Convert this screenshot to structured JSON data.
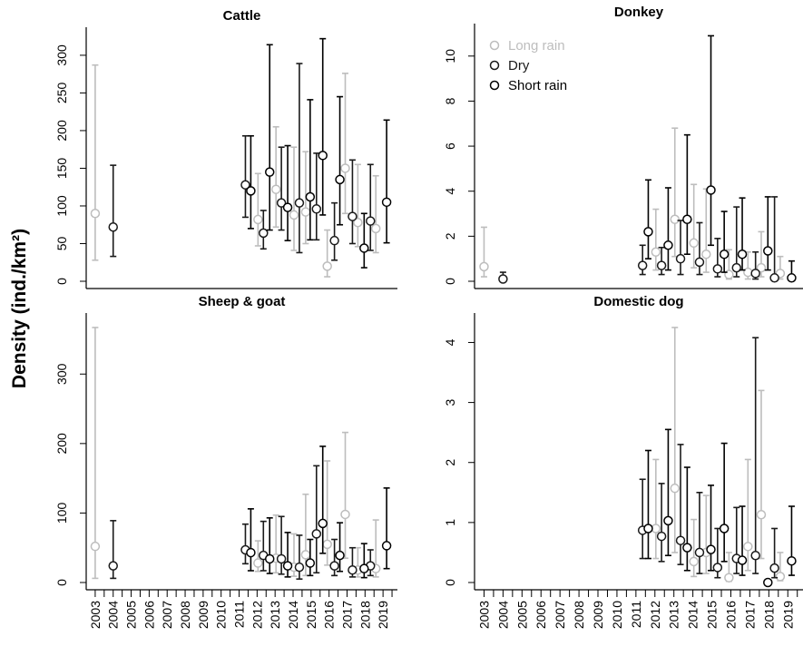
{
  "figure": {
    "ylabel": "Density (ind./km²)",
    "colors": {
      "long_rain": "#bdbdbd",
      "dry": "#1a1a1a",
      "short_rain": "#000000",
      "axis": "#000000"
    }
  },
  "chart_data": [
    {
      "type": "scatter",
      "title": "Cattle",
      "ylim": [
        0,
        330
      ],
      "yticks": [
        0,
        50,
        100,
        150,
        200,
        250,
        300
      ],
      "series": [
        {
          "name": "Long rain",
          "points": [
            {
              "x": 2003.0,
              "y": 90,
              "lo": 28,
              "hi": 287
            },
            {
              "x": 2012.05,
              "y": 82,
              "lo": 47,
              "hi": 143
            },
            {
              "x": 2013.05,
              "y": 122,
              "lo": 72,
              "hi": 205
            },
            {
              "x": 2014.05,
              "y": 88,
              "lo": 41,
              "hi": 178
            },
            {
              "x": 2014.7,
              "y": 92,
              "lo": 50,
              "hi": 172
            },
            {
              "x": 2015.9,
              "y": 20,
              "lo": 6,
              "hi": 68
            },
            {
              "x": 2016.9,
              "y": 150,
              "lo": 90,
              "hi": 276
            },
            {
              "x": 2017.6,
              "y": 78,
              "lo": 46,
              "hi": 155
            },
            {
              "x": 2018.6,
              "y": 70,
              "lo": 38,
              "hi": 140
            }
          ]
        },
        {
          "name": "Dry",
          "points": [
            {
              "x": 2004.0,
              "y": 72,
              "lo": 33,
              "hi": 154
            },
            {
              "x": 2011.35,
              "y": 128,
              "lo": 85,
              "hi": 193
            },
            {
              "x": 2012.35,
              "y": 64,
              "lo": 43,
              "hi": 94
            },
            {
              "x": 2013.35,
              "y": 104,
              "lo": 68,
              "hi": 178
            },
            {
              "x": 2014.35,
              "y": 104,
              "lo": 38,
              "hi": 289
            },
            {
              "x": 2015.3,
              "y": 96,
              "lo": 55,
              "hi": 170
            },
            {
              "x": 2016.3,
              "y": 54,
              "lo": 28,
              "hi": 104
            },
            {
              "x": 2017.3,
              "y": 86,
              "lo": 50,
              "hi": 161
            },
            {
              "x": 2018.3,
              "y": 80,
              "lo": 41,
              "hi": 155
            }
          ]
        },
        {
          "name": "Short rain",
          "points": [
            {
              "x": 2011.65,
              "y": 120,
              "lo": 70,
              "hi": 193
            },
            {
              "x": 2012.7,
              "y": 145,
              "lo": 68,
              "hi": 314
            },
            {
              "x": 2013.7,
              "y": 98,
              "lo": 54,
              "hi": 180
            },
            {
              "x": 2014.95,
              "y": 112,
              "lo": 55,
              "hi": 241
            },
            {
              "x": 2015.65,
              "y": 167,
              "lo": 88,
              "hi": 322
            },
            {
              "x": 2016.6,
              "y": 135,
              "lo": 75,
              "hi": 245
            },
            {
              "x": 2017.95,
              "y": 44,
              "lo": 18,
              "hi": 90
            },
            {
              "x": 2019.2,
              "y": 105,
              "lo": 51,
              "hi": 214
            }
          ]
        }
      ]
    },
    {
      "type": "scatter",
      "title": "Donkey",
      "ylim": [
        0,
        11.2
      ],
      "yticks": [
        0,
        2,
        4,
        6,
        8,
        10
      ],
      "legend": {
        "placement": "top-left",
        "entries": [
          "Long rain",
          "Dry",
          "Short rain"
        ]
      },
      "series": [
        {
          "name": "Long rain",
          "points": [
            {
              "x": 2003.0,
              "y": 0.65,
              "lo": 0.2,
              "hi": 2.4
            },
            {
              "x": 2012.05,
              "y": 1.3,
              "lo": 0.5,
              "hi": 3.2
            },
            {
              "x": 2013.05,
              "y": 2.75,
              "lo": 1.1,
              "hi": 6.8
            },
            {
              "x": 2014.05,
              "y": 1.7,
              "lo": 0.6,
              "hi": 4.3
            },
            {
              "x": 2014.7,
              "y": 1.2,
              "lo": 0.4,
              "hi": 4.1
            },
            {
              "x": 2015.9,
              "y": 0.3,
              "lo": 0.1,
              "hi": 1.4
            },
            {
              "x": 2016.9,
              "y": 0.4,
              "lo": 0.1,
              "hi": 1.3
            },
            {
              "x": 2017.6,
              "y": 0.6,
              "lo": 0.2,
              "hi": 2.2
            },
            {
              "x": 2018.6,
              "y": 0.35,
              "lo": 0.1,
              "hi": 1.1
            }
          ]
        },
        {
          "name": "Dry",
          "points": [
            {
              "x": 2004.0,
              "y": 0.1,
              "lo": 0.0,
              "hi": 0.4
            },
            {
              "x": 2011.35,
              "y": 0.7,
              "lo": 0.3,
              "hi": 1.6
            },
            {
              "x": 2012.35,
              "y": 0.7,
              "lo": 0.3,
              "hi": 1.5
            },
            {
              "x": 2013.35,
              "y": 1.0,
              "lo": 0.3,
              "hi": 2.7
            },
            {
              "x": 2014.35,
              "y": 0.85,
              "lo": 0.3,
              "hi": 2.6
            },
            {
              "x": 2015.3,
              "y": 0.55,
              "lo": 0.2,
              "hi": 1.9
            },
            {
              "x": 2016.3,
              "y": 0.6,
              "lo": 0.2,
              "hi": 3.3
            },
            {
              "x": 2017.3,
              "y": 0.35,
              "lo": 0.1,
              "hi": 1.3
            },
            {
              "x": 2018.3,
              "y": 0.15,
              "lo": 0.05,
              "hi": 3.75
            }
          ]
        },
        {
          "name": "Short rain",
          "points": [
            {
              "x": 2011.65,
              "y": 2.2,
              "lo": 1.0,
              "hi": 4.5
            },
            {
              "x": 2012.7,
              "y": 1.6,
              "lo": 0.5,
              "hi": 4.15
            },
            {
              "x": 2013.7,
              "y": 2.75,
              "lo": 1.2,
              "hi": 6.5
            },
            {
              "x": 2014.95,
              "y": 4.05,
              "lo": 1.6,
              "hi": 10.9
            },
            {
              "x": 2015.65,
              "y": 1.2,
              "lo": 0.4,
              "hi": 3.1
            },
            {
              "x": 2016.6,
              "y": 1.2,
              "lo": 0.5,
              "hi": 3.7
            },
            {
              "x": 2017.95,
              "y": 1.35,
              "lo": 0.5,
              "hi": 3.75
            },
            {
              "x": 2019.2,
              "y": 0.15,
              "lo": 0.03,
              "hi": 0.9
            }
          ]
        }
      ]
    },
    {
      "type": "scatter",
      "title": "Sheep & goat",
      "ylim": [
        0,
        380
      ],
      "yticks": [
        0,
        100,
        200,
        300
      ],
      "series": [
        {
          "name": "Long rain",
          "points": [
            {
              "x": 2003.0,
              "y": 52,
              "lo": 6,
              "hi": 367
            },
            {
              "x": 2012.05,
              "y": 28,
              "lo": 16,
              "hi": 60
            },
            {
              "x": 2013.05,
              "y": 35,
              "lo": 14,
              "hi": 97
            },
            {
              "x": 2014.05,
              "y": 22,
              "lo": 9,
              "hi": 70
            },
            {
              "x": 2014.7,
              "y": 40,
              "lo": 10,
              "hi": 127
            },
            {
              "x": 2015.9,
              "y": 55,
              "lo": 25,
              "hi": 175
            },
            {
              "x": 2016.9,
              "y": 98,
              "lo": 35,
              "hi": 216
            },
            {
              "x": 2017.6,
              "y": 18,
              "lo": 8,
              "hi": 50
            },
            {
              "x": 2018.6,
              "y": 20,
              "lo": 8,
              "hi": 90
            }
          ]
        },
        {
          "name": "Dry",
          "points": [
            {
              "x": 2004.0,
              "y": 24,
              "lo": 6,
              "hi": 89
            },
            {
              "x": 2011.35,
              "y": 47,
              "lo": 27,
              "hi": 84
            },
            {
              "x": 2012.35,
              "y": 39,
              "lo": 17,
              "hi": 88
            },
            {
              "x": 2013.35,
              "y": 34,
              "lo": 12,
              "hi": 95
            },
            {
              "x": 2014.35,
              "y": 22,
              "lo": 5,
              "hi": 68
            },
            {
              "x": 2015.3,
              "y": 70,
              "lo": 14,
              "hi": 168
            },
            {
              "x": 2016.3,
              "y": 24,
              "lo": 10,
              "hi": 62
            },
            {
              "x": 2017.3,
              "y": 18,
              "lo": 8,
              "hi": 50
            },
            {
              "x": 2018.3,
              "y": 24,
              "lo": 10,
              "hi": 47
            }
          ]
        },
        {
          "name": "Short rain",
          "points": [
            {
              "x": 2011.65,
              "y": 43,
              "lo": 17,
              "hi": 106
            },
            {
              "x": 2012.7,
              "y": 34,
              "lo": 13,
              "hi": 93
            },
            {
              "x": 2013.7,
              "y": 24,
              "lo": 8,
              "hi": 72
            },
            {
              "x": 2014.95,
              "y": 28,
              "lo": 10,
              "hi": 62
            },
            {
              "x": 2015.65,
              "y": 85,
              "lo": 42,
              "hi": 196
            },
            {
              "x": 2016.6,
              "y": 39,
              "lo": 16,
              "hi": 86
            },
            {
              "x": 2017.95,
              "y": 20,
              "lo": 7,
              "hi": 56
            },
            {
              "x": 2019.2,
              "y": 53,
              "lo": 20,
              "hi": 136
            }
          ]
        }
      ]
    },
    {
      "type": "scatter",
      "title": "Domestic dog",
      "ylim": [
        0,
        4.4
      ],
      "yticks": [
        0,
        1,
        2,
        3,
        4
      ],
      "series": [
        {
          "name": "Long rain",
          "points": [
            {
              "x": 2012.05,
              "y": 0.9,
              "lo": 0.4,
              "hi": 2.05
            },
            {
              "x": 2013.05,
              "y": 1.57,
              "lo": 0.5,
              "hi": 4.25
            },
            {
              "x": 2014.05,
              "y": 0.35,
              "lo": 0.1,
              "hi": 1.05
            },
            {
              "x": 2014.7,
              "y": 0.5,
              "lo": 0.15,
              "hi": 1.45
            },
            {
              "x": 2015.9,
              "y": 0.08,
              "lo": 0.02,
              "hi": 0.5
            },
            {
              "x": 2016.9,
              "y": 0.6,
              "lo": 0.2,
              "hi": 2.05
            },
            {
              "x": 2017.6,
              "y": 1.13,
              "lo": 0.4,
              "hi": 3.2
            },
            {
              "x": 2018.6,
              "y": 0.1,
              "lo": 0.03,
              "hi": 0.5
            }
          ]
        },
        {
          "name": "Dry",
          "points": [
            {
              "x": 2011.35,
              "y": 0.87,
              "lo": 0.4,
              "hi": 1.72
            },
            {
              "x": 2012.35,
              "y": 0.77,
              "lo": 0.35,
              "hi": 1.65
            },
            {
              "x": 2013.35,
              "y": 0.7,
              "lo": 0.3,
              "hi": 2.3
            },
            {
              "x": 2014.35,
              "y": 0.5,
              "lo": 0.15,
              "hi": 1.5
            },
            {
              "x": 2015.3,
              "y": 0.25,
              "lo": 0.08,
              "hi": 0.9
            },
            {
              "x": 2016.3,
              "y": 0.4,
              "lo": 0.15,
              "hi": 1.25
            },
            {
              "x": 2017.3,
              "y": 0.45,
              "lo": 0.15,
              "hi": 4.08
            },
            {
              "x": 2018.3,
              "y": 0.24,
              "lo": 0.08,
              "hi": 0.9
            }
          ]
        },
        {
          "name": "Short rain",
          "points": [
            {
              "x": 2011.65,
              "y": 0.9,
              "lo": 0.4,
              "hi": 2.2
            },
            {
              "x": 2012.7,
              "y": 1.03,
              "lo": 0.45,
              "hi": 2.55
            },
            {
              "x": 2013.7,
              "y": 0.58,
              "lo": 0.2,
              "hi": 1.92
            },
            {
              "x": 2014.95,
              "y": 0.55,
              "lo": 0.2,
              "hi": 1.62
            },
            {
              "x": 2015.65,
              "y": 0.9,
              "lo": 0.35,
              "hi": 2.32
            },
            {
              "x": 2016.6,
              "y": 0.37,
              "lo": 0.12,
              "hi": 1.27
            },
            {
              "x": 2017.95,
              "y": 0.0,
              "lo": 0.0,
              "hi": 0.0
            },
            {
              "x": 2019.2,
              "y": 0.36,
              "lo": 0.12,
              "hi": 1.27
            }
          ]
        }
      ]
    }
  ],
  "xaxis": {
    "xlim": [
      2002.5,
      2019.8
    ],
    "tick_labels": [
      "2003",
      "2004",
      "2005",
      "2006",
      "2007",
      "2008",
      "2009",
      "2010",
      "2011",
      "2012",
      "2013",
      "2014",
      "2015",
      "2016",
      "2017",
      "2018",
      "2019"
    ],
    "tick_positions": [
      2003,
      2004,
      2005,
      2006,
      2007,
      2008,
      2009,
      2010,
      2011,
      2012,
      2013,
      2014,
      2015,
      2016,
      2017,
      2018,
      2019
    ],
    "minor_ticks": [
      2003.5,
      2004.5,
      2005.5,
      2006.5,
      2007.5,
      2008.5,
      2009.5,
      2010.5,
      2011.5,
      2012.5,
      2013.5,
      2014.5,
      2015.5,
      2016.5,
      2017.5,
      2018.5,
      2019.5
    ]
  }
}
